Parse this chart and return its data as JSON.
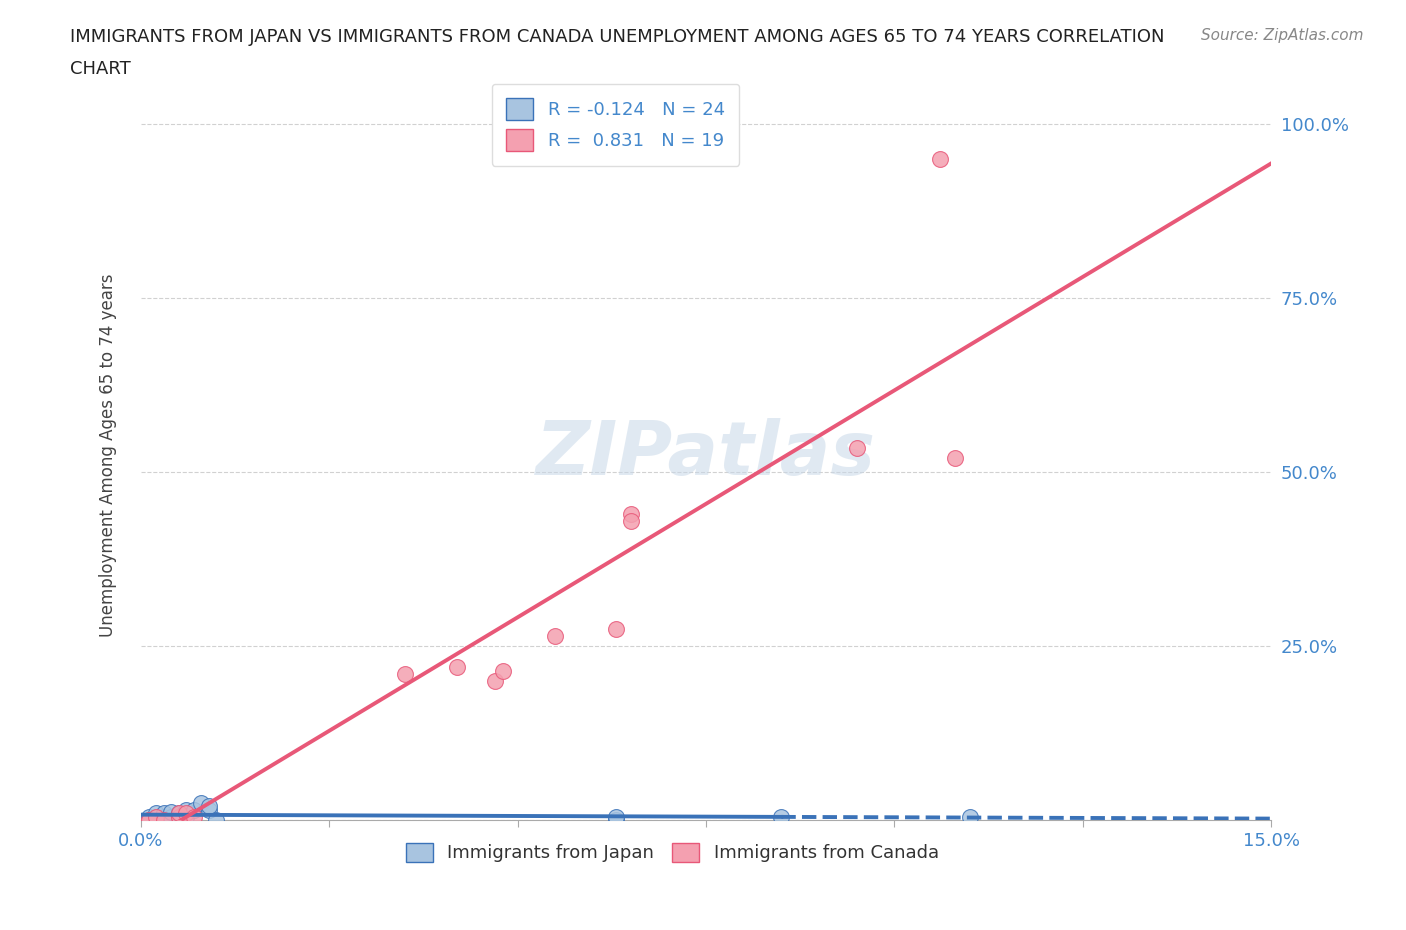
{
  "title_line1": "IMMIGRANTS FROM JAPAN VS IMMIGRANTS FROM CANADA UNEMPLOYMENT AMONG AGES 65 TO 74 YEARS CORRELATION",
  "title_line2": "CHART",
  "source": "Source: ZipAtlas.com",
  "ylabel": "Unemployment Among Ages 65 to 74 years",
  "xlim": [
    0.0,
    0.15
  ],
  "ylim": [
    0.0,
    1.05
  ],
  "xticks": [
    0.0,
    0.025,
    0.05,
    0.075,
    0.1,
    0.125,
    0.15
  ],
  "xtick_labels": [
    "0.0%",
    "",
    "",
    "",
    "",
    "",
    "15.0%"
  ],
  "yticks": [
    0.0,
    0.25,
    0.5,
    0.75,
    1.0
  ],
  "ytick_labels": [
    "",
    "25.0%",
    "50.0%",
    "75.0%",
    "100.0%"
  ],
  "grid_color": "#cccccc",
  "background_color": "#ffffff",
  "japan_x": [
    0.001,
    0.001,
    0.001,
    0.002,
    0.002,
    0.002,
    0.003,
    0.003,
    0.003,
    0.004,
    0.004,
    0.005,
    0.005,
    0.006,
    0.006,
    0.007,
    0.008,
    0.009,
    0.009,
    0.01,
    0.063,
    0.063,
    0.085,
    0.11
  ],
  "japan_y": [
    0.0,
    0.0,
    0.005,
    0.0,
    0.005,
    0.01,
    0.0,
    0.005,
    0.01,
    0.005,
    0.012,
    0.005,
    0.01,
    0.005,
    0.015,
    0.015,
    0.025,
    0.015,
    0.02,
    0.0,
    0.0,
    0.005,
    0.005,
    0.005
  ],
  "canada_x": [
    0.001,
    0.001,
    0.002,
    0.003,
    0.005,
    0.005,
    0.006,
    0.007,
    0.035,
    0.042,
    0.047,
    0.048,
    0.055,
    0.063,
    0.065,
    0.065,
    0.095,
    0.106,
    0.108
  ],
  "canada_y": [
    0.0,
    0.0,
    0.005,
    0.0,
    0.005,
    0.01,
    0.01,
    0.005,
    0.21,
    0.22,
    0.2,
    0.215,
    0.265,
    0.275,
    0.44,
    0.43,
    0.535,
    0.95,
    0.52
  ],
  "japan_color": "#a8c4e0",
  "canada_color": "#f4a0b0",
  "japan_line_color": "#3a72b8",
  "canada_line_color": "#e85878",
  "japan_R": "-0.124",
  "japan_N": 24,
  "canada_R": "0.831",
  "canada_N": 19,
  "legend_label_japan": "Immigrants from Japan",
  "legend_label_canada": "Immigrants from Canada",
  "title_color": "#222222",
  "tick_label_color": "#4488cc"
}
